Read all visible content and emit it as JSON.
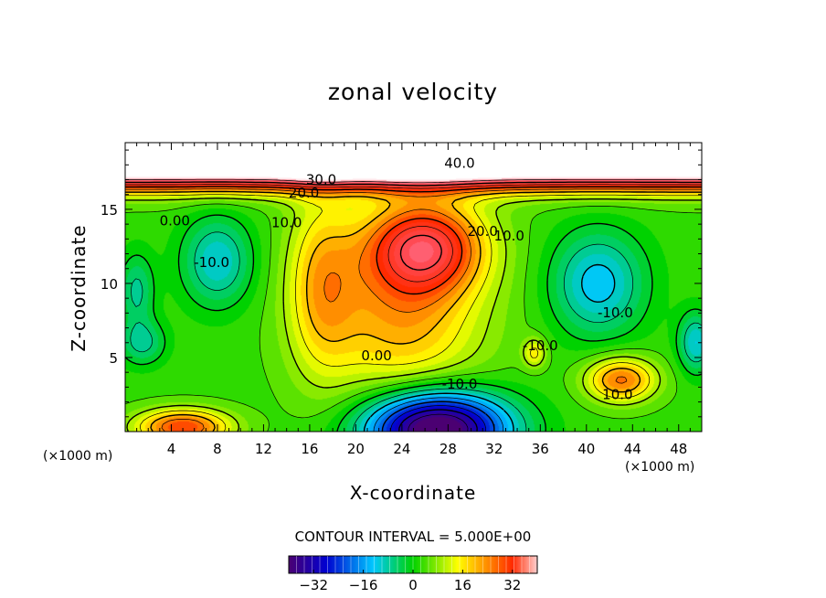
{
  "title": "zonal velocity",
  "chart_data": {
    "type": "heatmap",
    "title": "zonal velocity",
    "xlabel": "X-coordinate",
    "ylabel": "Z-coordinate",
    "x_unit_label": "(×1000 m)",
    "xlim": [
      0,
      50
    ],
    "ylim": [
      0,
      19.5
    ],
    "x_ticks": [
      4,
      8,
      12,
      16,
      20,
      24,
      28,
      32,
      36,
      40,
      44,
      48
    ],
    "y_ticks": [
      5,
      10,
      15
    ],
    "contour_interval_text": "CONTOUR INTERVAL = 5.000E+00",
    "contour_labels": [
      {
        "text": "40.0",
        "x": 29,
        "y": 17.8
      },
      {
        "text": "30.0",
        "x": 17,
        "y": 16.7
      },
      {
        "text": "20.0",
        "x": 15.5,
        "y": 15.8
      },
      {
        "text": "0.00",
        "x": 4.3,
        "y": 13.9
      },
      {
        "text": "-10.0",
        "x": 7.5,
        "y": 11.1
      },
      {
        "text": "10.0",
        "x": 14,
        "y": 13.8
      },
      {
        "text": "20.0",
        "x": 31,
        "y": 13.2
      },
      {
        "text": "10.0",
        "x": 33.3,
        "y": 12.9
      },
      {
        "text": "-10.0",
        "x": 42.5,
        "y": 7.7
      },
      {
        "text": "0.00",
        "x": 21.8,
        "y": 4.8
      },
      {
        "text": "-10.0",
        "x": 29,
        "y": 2.9
      },
      {
        "text": "10.0",
        "x": 42.7,
        "y": 2.2
      },
      {
        "text": "-10.0",
        "x": 36,
        "y": 5.5
      }
    ],
    "colorbar": {
      "min": -40,
      "max": 40,
      "ticks": [
        -32,
        -16,
        0,
        16,
        32
      ]
    },
    "colors": {
      "cmin": "#4b0072",
      "c1": "#0000d0",
      "c2": "#00c8ff",
      "c3": "#00d200",
      "c4": "#ffff00",
      "c5": "#ff2a00",
      "cmax": "#ffffff"
    }
  }
}
